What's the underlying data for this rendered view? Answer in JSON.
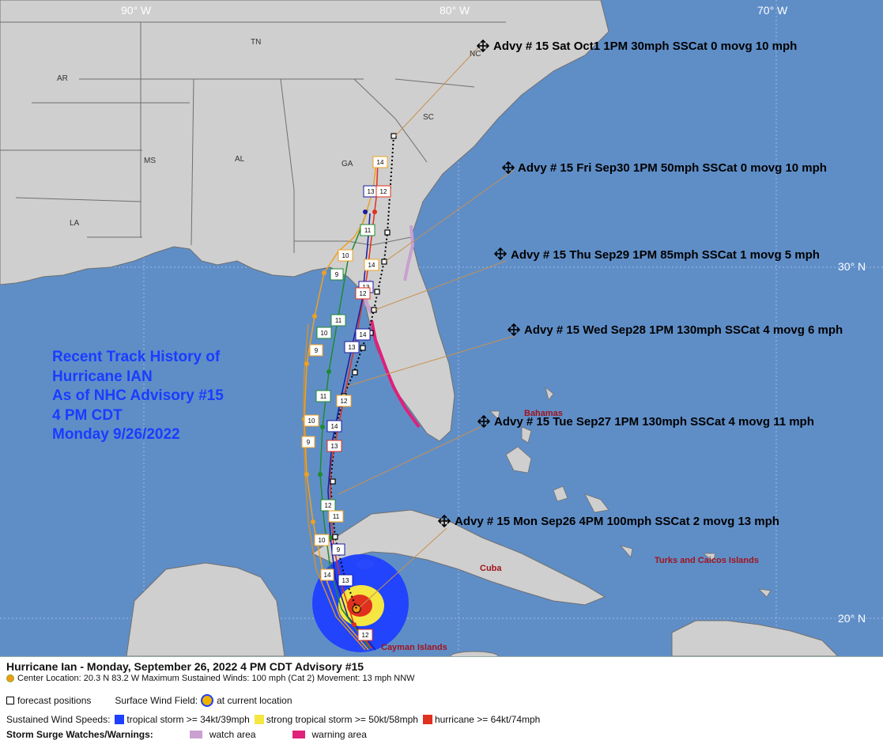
{
  "longitude_labels": [
    "90° W",
    "80° W",
    "70° W"
  ],
  "latitude_labels": [
    "30° N",
    "20° N"
  ],
  "state_labels": [
    "AR",
    "TN",
    "NC",
    "SC",
    "MS",
    "AL",
    "GA",
    "LA"
  ],
  "region_labels": [
    "Bahamas",
    "Cuba",
    "Turks and Caicos Islands",
    "Cayman Islands"
  ],
  "advisories": [
    "Advy # 15 Sat Oct1 1PM  30mph SSCat 0 movg 10 mph",
    "Advy # 15 Fri Sep30 1PM  50mph SSCat 0 movg 10 mph",
    "Advy # 15 Thu Sep29 1PM  85mph SSCat 1 movg 5 mph",
    "Advy # 15 Wed Sep28 1PM  130mph SSCat 4 movg 6 mph",
    "Advy # 15 Tue Sep27 1PM  130mph SSCat 4 movg 11 mph",
    "Advy # 15 Mon Sep26 4PM  100mph SSCat 2 movg 13 mph"
  ],
  "history_title": {
    "line1": "Recent Track History of",
    "line2": "Hurricane IAN",
    "line3": "As of NHC Advisory #15",
    "line4": "4 PM CDT",
    "line5": "Monday 9/26/2022"
  },
  "track_markers": [
    "14",
    "13",
    "12",
    "11",
    "10",
    "9",
    "14",
    "13",
    "12",
    "11",
    "10",
    "9",
    "14",
    "13",
    "12",
    "11",
    "10",
    "9",
    "14",
    "13",
    "12",
    "11",
    "10",
    "9",
    "14",
    "13",
    "12",
    "11",
    "10",
    "9"
  ],
  "legend": {
    "title": "Hurricane Ian  -  Monday, September 26, 2022  4 PM CDT   Advisory #15",
    "center_info": "Center Location: 20.3 N  83.2 W   Maximum Sustained Winds: 100 mph (Cat 2) Movement: 13 mph NNW",
    "forecast_positions": "forecast positions",
    "surface_wind_field": "Surface Wind Field:",
    "at_current_location": "at current location",
    "sustained_wind_speeds": "Sustained Wind Speeds:",
    "tropical_storm": "tropical storm >= 34kt/39mph",
    "strong_tropical_storm": "strong tropical storm >= 50kt/58mph",
    "hurricane": "hurricane >= 64kt/74mph",
    "storm_surge": "Storm Surge Watches/Warnings:",
    "watch_area": "watch area",
    "warning_area": "warning area"
  },
  "colors": {
    "ocean": "#5f8ec7",
    "land": "#cfcfcf",
    "tropical_storm": "#1e40ff",
    "strong_tropical_storm": "#f5e642",
    "hurricane": "#e0301e",
    "watch": "#c9a0d0",
    "warning": "#e0207a",
    "title_text": "#1a3cff"
  }
}
